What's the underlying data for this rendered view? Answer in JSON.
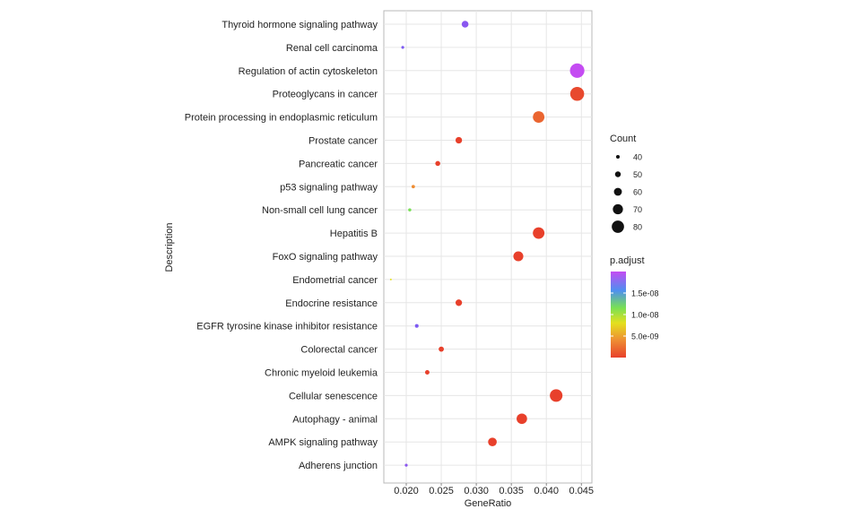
{
  "chart_data": {
    "type": "scatter",
    "xlabel": "GeneRatio",
    "ylabel": "Description",
    "xlim": [
      0.0168,
      0.0465
    ],
    "xticks": [
      0.02,
      0.025,
      0.03,
      0.035,
      0.04,
      0.045
    ],
    "xtick_labels": [
      "0.020",
      "0.025",
      "0.030",
      "0.035",
      "0.040",
      "0.045"
    ],
    "grid": true,
    "legend_position": "right",
    "categories": [
      "Thyroid hormone signaling pathway",
      "Renal cell carcinoma",
      "Regulation of actin cytoskeleton",
      "Proteoglycans in cancer",
      "Protein processing in endoplasmic reticulum",
      "Prostate cancer",
      "Pancreatic cancer",
      "p53 signaling pathway",
      "Non-small cell lung cancer",
      "Hepatitis B",
      "FoxO signaling pathway",
      "Endometrial cancer",
      "Endocrine resistance",
      "EGFR tyrosine kinase inhibitor resistance",
      "Colorectal cancer",
      "Chronic myeloid leukemia",
      "Cellular senescence",
      "Autophagy - animal",
      "AMPK signaling pathway",
      "Adherens junction"
    ],
    "points": [
      {
        "label": "Thyroid hormone signaling pathway",
        "x": 0.0284,
        "count": 49,
        "p_adjust": 1.7e-08,
        "color": "#8a57f0"
      },
      {
        "label": "Renal cell carcinoma",
        "x": 0.0195,
        "count": 34,
        "p_adjust": 1.7e-08,
        "color": "#7d5af2"
      },
      {
        "label": "Regulation of actin cytoskeleton",
        "x": 0.0444,
        "count": 78,
        "p_adjust": 2.1e-08,
        "color": "#c44cf2"
      },
      {
        "label": "Proteoglycans in cancer",
        "x": 0.0444,
        "count": 76,
        "p_adjust": 1e-10,
        "color": "#e8492e"
      },
      {
        "label": "Protein processing in endoplasmic reticulum",
        "x": 0.0389,
        "count": 67,
        "p_adjust": 1.5e-09,
        "color": "#ea6530"
      },
      {
        "label": "Prostate cancer",
        "x": 0.0275,
        "count": 48,
        "p_adjust": 1e-10,
        "color": "#e8402b"
      },
      {
        "label": "Pancreatic cancer",
        "x": 0.0245,
        "count": 42,
        "p_adjust": 1e-10,
        "color": "#e8402b"
      },
      {
        "label": "p53 signaling pathway",
        "x": 0.021,
        "count": 36,
        "p_adjust": 1.9e-09,
        "color": "#ee8d33"
      },
      {
        "label": "Non-small cell lung cancer",
        "x": 0.0205,
        "count": 35,
        "p_adjust": 6.5e-09,
        "color": "#78e055"
      },
      {
        "label": "Hepatitis B",
        "x": 0.0389,
        "count": 67,
        "p_adjust": 1e-10,
        "color": "#e8402b"
      },
      {
        "label": "FoxO signaling pathway",
        "x": 0.036,
        "count": 61,
        "p_adjust": 1e-10,
        "color": "#e8402b"
      },
      {
        "label": "Endometrial cancer",
        "x": 0.0178,
        "count": 30,
        "p_adjust": 4.5e-09,
        "color": "#e4e01e"
      },
      {
        "label": "Endocrine resistance",
        "x": 0.0275,
        "count": 48,
        "p_adjust": 1e-10,
        "color": "#e8402b"
      },
      {
        "label": "EGFR tyrosine kinase inhibitor resistance",
        "x": 0.0215,
        "count": 37,
        "p_adjust": 1.6e-08,
        "color": "#7d5af2"
      },
      {
        "label": "Colorectal cancer",
        "x": 0.025,
        "count": 43,
        "p_adjust": 1e-10,
        "color": "#e8402b"
      },
      {
        "label": "Chronic myeloid leukemia",
        "x": 0.023,
        "count": 40,
        "p_adjust": 1e-10,
        "color": "#e8402b"
      },
      {
        "label": "Cellular senescence",
        "x": 0.0414,
        "count": 71,
        "p_adjust": 1e-10,
        "color": "#e8402b"
      },
      {
        "label": "Autophagy - animal",
        "x": 0.0365,
        "count": 63,
        "p_adjust": 1e-10,
        "color": "#e8402b"
      },
      {
        "label": "AMPK signaling pathway",
        "x": 0.0323,
        "count": 56,
        "p_adjust": 1e-10,
        "color": "#e8402b"
      },
      {
        "label": "Adherens junction",
        "x": 0.02,
        "count": 34,
        "p_adjust": 1.7e-08,
        "color": "#8a57f0"
      }
    ],
    "size_legend": {
      "title": "Count",
      "levels": [
        40,
        50,
        60,
        70,
        80
      ],
      "labels": [
        "40",
        "50",
        "60",
        "70",
        "80"
      ]
    },
    "color_legend": {
      "title": "p.adjust",
      "tick_labels": [
        "1.5e-08",
        "1.0e-08",
        "5.0e-09"
      ],
      "tick_values": [
        1.5e-08,
        1e-08,
        5e-09
      ],
      "range": [
        0,
        2e-08
      ],
      "gradient_colors": [
        "#e8402b",
        "#ee8d33",
        "#e4e01e",
        "#78e055",
        "#4f8ff0",
        "#c44cf2"
      ]
    }
  }
}
